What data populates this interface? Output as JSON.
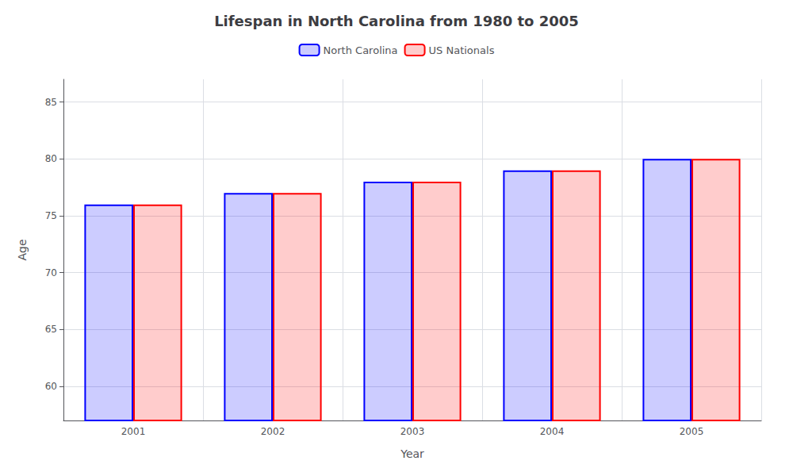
{
  "chart_data": {
    "type": "bar",
    "title": "Lifespan in North Carolina from 1980 to 2005",
    "x_label": "Year",
    "y_label": "Age",
    "categories": [
      "2001",
      "2002",
      "2003",
      "2004",
      "2005"
    ],
    "series": [
      {
        "name": "North Carolina",
        "color": "#0000ff",
        "values": [
          76,
          77,
          78,
          79,
          80
        ]
      },
      {
        "name": "US Nationals",
        "color": "#ff0000",
        "values": [
          76,
          77,
          78,
          79,
          80
        ]
      }
    ],
    "ylim": [
      57,
      87
    ],
    "yticks": [
      60,
      65,
      70,
      75,
      80,
      85
    ],
    "grid": true,
    "legend": "top"
  }
}
